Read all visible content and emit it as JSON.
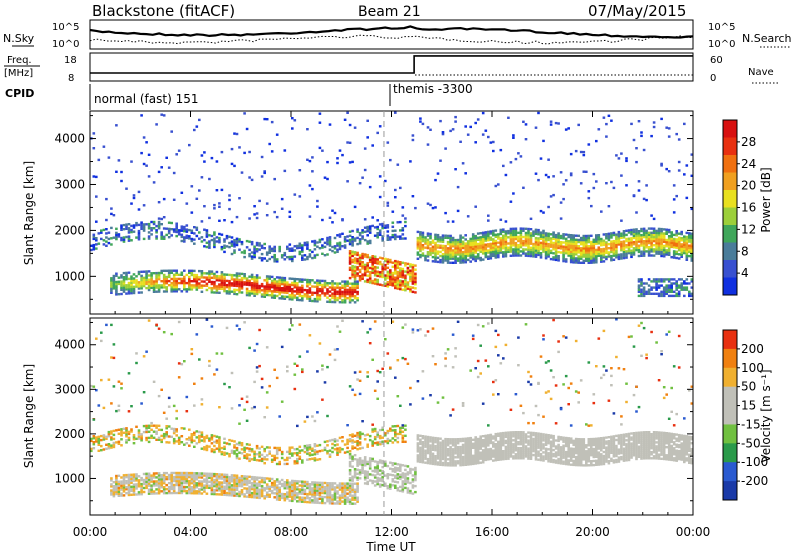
{
  "header": {
    "radar": "Blackstone (fitACF)",
    "beam": "Beam 21",
    "date": "07/May/2015"
  },
  "ancillary": {
    "nsky_label": "N.Sky",
    "nsearch_label": "N.Search",
    "nsky_ticks": [
      "10^5",
      "10^0"
    ],
    "freq_label_1": "Freq.",
    "freq_label_2": "[MHz]",
    "freq_ticks": [
      "18",
      "8"
    ],
    "nave_label": "Nave",
    "nave_ticks": [
      "60",
      "0"
    ],
    "cpid_label": "CPID",
    "cpid_segments": [
      {
        "name": "normal (fast) 151",
        "start_hour": 0
      },
      {
        "name": "themis -3300",
        "start_hour": 12.2
      }
    ],
    "freq_mhz": [
      {
        "from_hour": 0,
        "to_hour": 12.9,
        "value": 10.5
      },
      {
        "from_hour": 12.9,
        "to_hour": 24,
        "value": 17.6
      }
    ]
  },
  "chart_data": [
    {
      "type": "heatmap",
      "title": "",
      "ylabel": "Slant Range [km]",
      "xlabel": "",
      "xlim": [
        0,
        24
      ],
      "ylim": [
        180,
        4600
      ],
      "yticks": [
        "4000",
        "3000",
        "2000",
        "1000"
      ],
      "colorbar": {
        "label": "Power [dB]",
        "ticks": [
          "28",
          "24",
          "20",
          "16",
          "12",
          "8",
          "4"
        ],
        "colors": [
          "#1030e0",
          "#3850d0",
          "#4a7c9a",
          "#3fa65a",
          "#9ccf3a",
          "#e8e020",
          "#f0a020",
          "#f07010",
          "#e83010",
          "#d81010"
        ]
      },
      "features": [
        {
          "name": "main band",
          "t_start": 1.0,
          "t_end": 10.5,
          "range_start_km": 700,
          "range_end_km": 1100,
          "peak_db": 28
        },
        {
          "name": "upper band",
          "t_start": 0,
          "t_end": 12.5,
          "range_start_km": 1700,
          "range_end_km": 2200,
          "peak_db": 12
        },
        {
          "name": "evening band",
          "t_start": 12.9,
          "t_end": 24,
          "range_start_km": 1500,
          "range_end_km": 1900,
          "peak_db": 20
        }
      ]
    },
    {
      "type": "heatmap",
      "title": "",
      "ylabel": "Slant Range [km]",
      "xlabel": "Time UT",
      "xlim": [
        0,
        24
      ],
      "ylim": [
        180,
        4600
      ],
      "xticks": [
        "00:00",
        "04:00",
        "08:00",
        "12:00",
        "16:00",
        "20:00",
        "00:00"
      ],
      "yticks": [
        "4000",
        "3000",
        "2000",
        "1000"
      ],
      "colorbar": {
        "label": "Velocity [m s⁻¹]",
        "ticks": [
          "200",
          "100",
          "50",
          "15",
          "-15",
          "-50",
          "-100",
          "-200"
        ],
        "colors": [
          "#1a3aa8",
          "#2a5ad0",
          "#2a9a4a",
          "#70c040",
          "#c0c0b8",
          "#c0c0b8",
          "#f0b030",
          "#f08010",
          "#e83010"
        ]
      }
    }
  ]
}
